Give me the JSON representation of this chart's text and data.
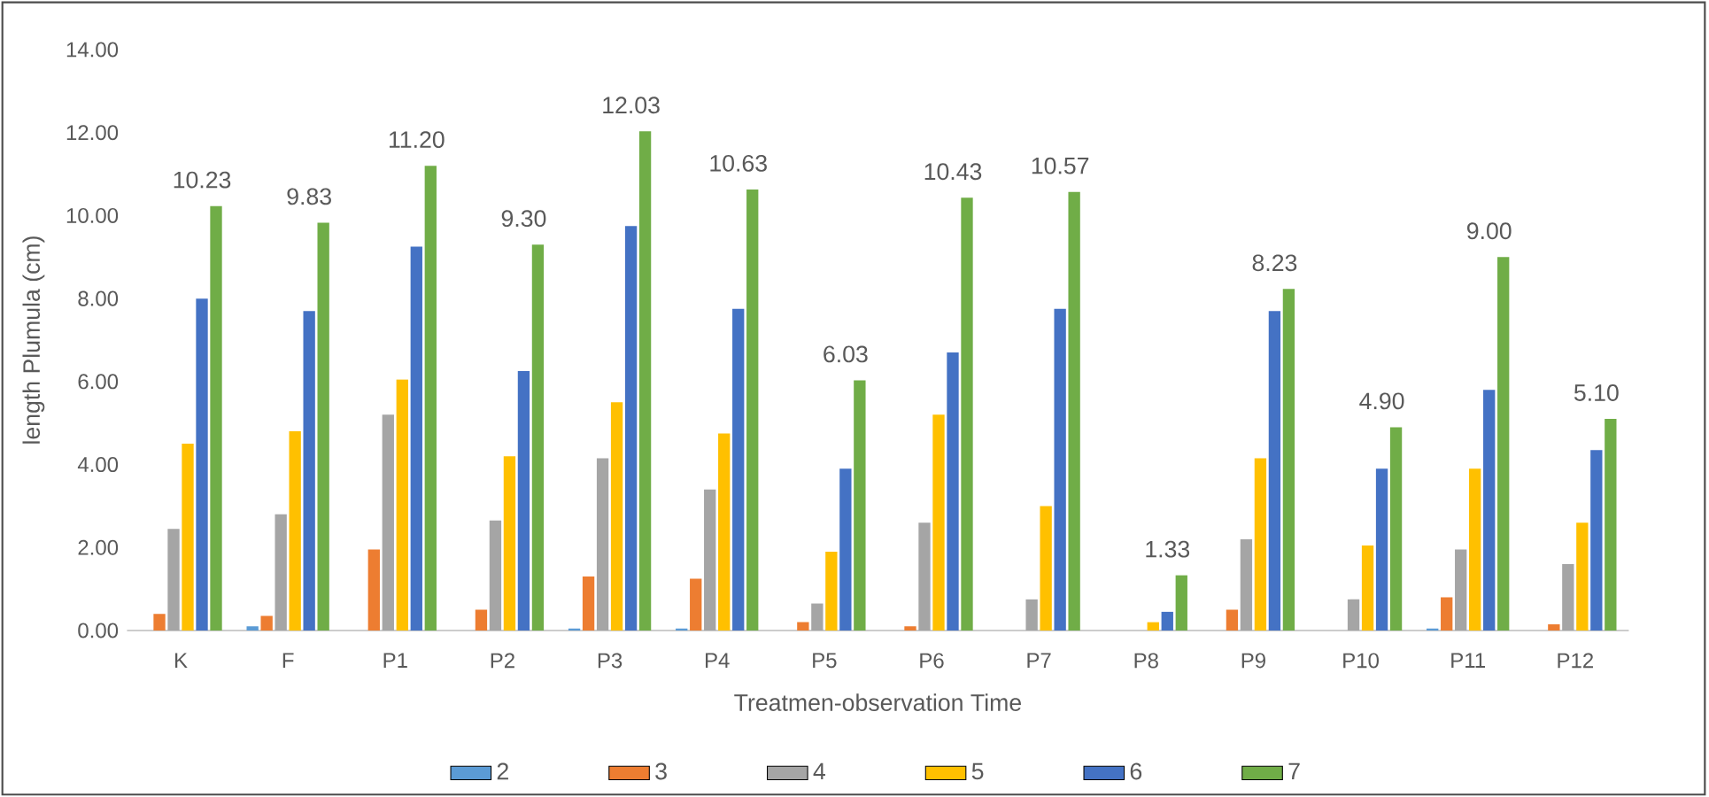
{
  "chart_data": {
    "type": "bar",
    "xlabel": "Treatmen-observation Time",
    "ylabel": "length  Plumula (cm)",
    "categories": [
      "K",
      "F",
      "P1",
      "P2",
      "P3",
      "P4",
      "P5",
      "P6",
      "P7",
      "P8",
      "P9",
      "P10",
      "P11",
      "P12"
    ],
    "ylim": [
      0,
      14
    ],
    "yticks": [
      {
        "value": 0,
        "label": "0.00"
      },
      {
        "value": 2,
        "label": "2.00"
      },
      {
        "value": 4,
        "label": "4.00"
      },
      {
        "value": 6,
        "label": "6.00"
      },
      {
        "value": 8,
        "label": "8.00"
      },
      {
        "value": 10,
        "label": "10.00"
      },
      {
        "value": 12,
        "label": "12.00"
      },
      {
        "value": 14,
        "label": "14.00"
      }
    ],
    "grid": false,
    "legend": "bottom",
    "series": [
      {
        "name": "2",
        "color": "#5b9bd5",
        "values": [
          0,
          0.1,
          0,
          0,
          0.05,
          0.05,
          0,
          0,
          0,
          0,
          0,
          0,
          0.05,
          0
        ]
      },
      {
        "name": "3",
        "color": "#ed7d31",
        "values": [
          0.4,
          0.35,
          1.95,
          0.5,
          1.3,
          1.25,
          0.2,
          0.1,
          0,
          0,
          0.5,
          0,
          0.8,
          0.15
        ]
      },
      {
        "name": "4",
        "color": "#a5a5a5",
        "values": [
          2.45,
          2.8,
          5.2,
          2.65,
          4.15,
          3.4,
          0.65,
          2.6,
          0.75,
          0,
          2.2,
          0.75,
          1.95,
          1.6
        ]
      },
      {
        "name": "5",
        "color": "#ffc000",
        "values": [
          4.5,
          4.8,
          6.05,
          4.2,
          5.5,
          4.75,
          1.9,
          5.2,
          3.0,
          0.2,
          4.15,
          2.05,
          3.9,
          2.6
        ]
      },
      {
        "name": "6",
        "color": "#4472c4",
        "values": [
          8.0,
          7.7,
          9.25,
          6.25,
          9.75,
          7.75,
          3.9,
          6.7,
          7.75,
          0.45,
          7.7,
          3.9,
          5.8,
          4.35
        ]
      },
      {
        "name": "7",
        "color": "#70ad47",
        "values": [
          10.23,
          9.83,
          11.2,
          9.3,
          12.03,
          10.63,
          6.03,
          10.43,
          10.57,
          1.33,
          8.23,
          4.9,
          9.0,
          5.1
        ],
        "value_labels": [
          "10.23",
          "9.83",
          "11.20",
          "9.30",
          "12.03",
          "10.63",
          "6.03",
          "10.43",
          "10.57",
          "1.33",
          "8.23",
          "4.90",
          "9.00",
          "5.10"
        ]
      }
    ]
  }
}
